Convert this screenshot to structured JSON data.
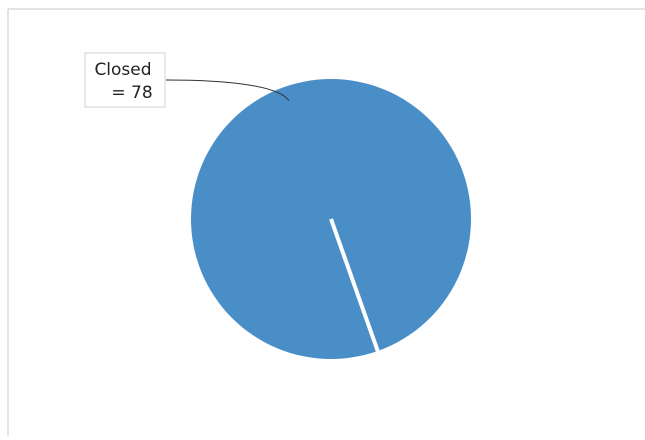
{
  "chart_data": {
    "type": "pie",
    "categories": [
      "Closed"
    ],
    "values": [
      78
    ],
    "value_labels": [
      "= 78"
    ],
    "colors": [
      "#4a8ec7"
    ]
  }
}
